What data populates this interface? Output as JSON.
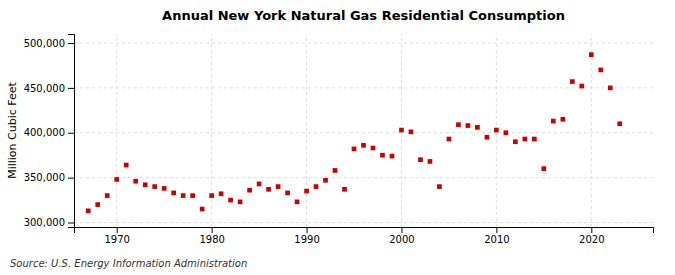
{
  "chart_data": {
    "type": "scatter",
    "title": "Annual New York Natural Gas Residential Consumption",
    "ylabel": "Million Cubic Feet",
    "source": "Source: U.S. Energy Information Administration",
    "color": "#cc0000",
    "marker": "square",
    "grid": true,
    "xlim": [
      1965.5,
      2026.5
    ],
    "xticks": [
      1970,
      1980,
      1990,
      2000,
      2010,
      2020
    ],
    "ylim": [
      295000,
      510000
    ],
    "yticks": [
      {
        "value": 300000,
        "label": "300,000"
      },
      {
        "value": 350000,
        "label": "350,000"
      },
      {
        "value": 400000,
        "label": "400,000"
      },
      {
        "value": 450000,
        "label": "450,000"
      },
      {
        "value": 500000,
        "label": "500,000"
      }
    ],
    "x": [
      1967,
      1968,
      1969,
      1970,
      1971,
      1972,
      1973,
      1974,
      1975,
      1976,
      1977,
      1978,
      1979,
      1980,
      1981,
      1982,
      1983,
      1984,
      1985,
      1986,
      1987,
      1988,
      1989,
      1990,
      1991,
      1992,
      1993,
      1994,
      1995,
      1996,
      1997,
      1998,
      1999,
      2000,
      2001,
      2002,
      2003,
      2004,
      2005,
      2006,
      2007,
      2008,
      2009,
      2010,
      2011,
      2012,
      2013,
      2014,
      2015,
      2016,
      2017,
      2018,
      2019,
      2020,
      2021,
      2022,
      2023
    ],
    "values": [
      313000,
      320000,
      330000,
      348000,
      364000,
      346000,
      342000,
      340000,
      338000,
      333000,
      330000,
      330000,
      315000,
      330000,
      332000,
      325000,
      323000,
      336000,
      343000,
      337000,
      340000,
      333000,
      323000,
      335000,
      340000,
      347000,
      358000,
      337000,
      382000,
      386000,
      383000,
      375000,
      374000,
      403000,
      401000,
      370000,
      368000,
      340000,
      393000,
      409000,
      408000,
      406000,
      395000,
      403000,
      400000,
      390000,
      393000,
      393000,
      360000,
      413000,
      415000,
      457000,
      452000,
      487000,
      470000,
      450000,
      410000
    ]
  }
}
